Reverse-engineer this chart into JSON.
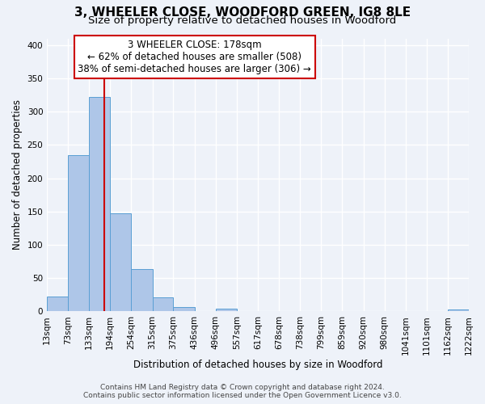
{
  "title": "3, WHEELER CLOSE, WOODFORD GREEN, IG8 8LE",
  "subtitle": "Size of property relative to detached houses in Woodford",
  "xlabel": "Distribution of detached houses by size in Woodford",
  "ylabel": "Number of detached properties",
  "bin_edges": [
    13,
    73,
    133,
    194,
    254,
    315,
    375,
    436,
    496,
    557,
    617,
    678,
    738,
    799,
    859,
    920,
    980,
    1041,
    1101,
    1162,
    1222
  ],
  "bar_heights": [
    22,
    235,
    322,
    147,
    63,
    21,
    7,
    0,
    4,
    0,
    0,
    0,
    0,
    0,
    0,
    0,
    0,
    0,
    0,
    3
  ],
  "bar_color": "#aec6e8",
  "bar_edge_color": "#5a9fd4",
  "vline_x": 178,
  "vline_color": "#cc0000",
  "ylim": [
    0,
    410
  ],
  "yticks": [
    0,
    50,
    100,
    150,
    200,
    250,
    300,
    350,
    400
  ],
  "annotation_title": "3 WHEELER CLOSE: 178sqm",
  "annotation_line1": "← 62% of detached houses are smaller (508)",
  "annotation_line2": "38% of semi-detached houses are larger (306) →",
  "annotation_box_color": "#ffffff",
  "annotation_box_edge": "#cc0000",
  "footer1": "Contains HM Land Registry data © Crown copyright and database right 2024.",
  "footer2": "Contains public sector information licensed under the Open Government Licence v3.0.",
  "bg_color": "#eef2f9",
  "grid_color": "#ffffff",
  "title_fontsize": 11,
  "subtitle_fontsize": 9.5,
  "axis_label_fontsize": 8.5,
  "tick_fontsize": 7.5,
  "annotation_fontsize": 8.5,
  "footer_fontsize": 6.5
}
